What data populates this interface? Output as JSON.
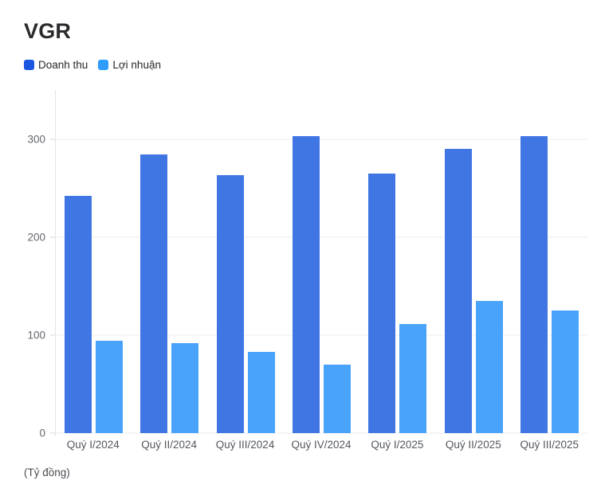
{
  "header": {
    "title": "VGR"
  },
  "legend": [
    {
      "label": "Doanh thu",
      "color": "#1a56e0"
    },
    {
      "label": "Lợi nhuận",
      "color": "#2f9bfa"
    }
  ],
  "footnote": "(Tỷ đồng)",
  "chart_data": {
    "type": "bar",
    "title": "VGR",
    "categories": [
      "Quý I/2024",
      "Quý II/2024",
      "Quý III/2024",
      "Quý IV/2024",
      "Quý I/2025",
      "Quý II/2025",
      "Quý III/2025"
    ],
    "series": [
      {
        "name": "Doanh thu",
        "color": "#4076e4",
        "values": [
          242,
          284,
          263,
          303,
          265,
          290,
          303
        ]
      },
      {
        "name": "Lợi nhuận",
        "color": "#4aa3fa",
        "values": [
          94,
          92,
          83,
          70,
          111,
          135,
          125
        ]
      }
    ],
    "xlabel": "",
    "ylabel": "Tỷ đồng",
    "ylim": [
      0,
      350
    ],
    "yticks": [
      0,
      100,
      200,
      300
    ],
    "grid": true,
    "legend_position": "top-left"
  }
}
